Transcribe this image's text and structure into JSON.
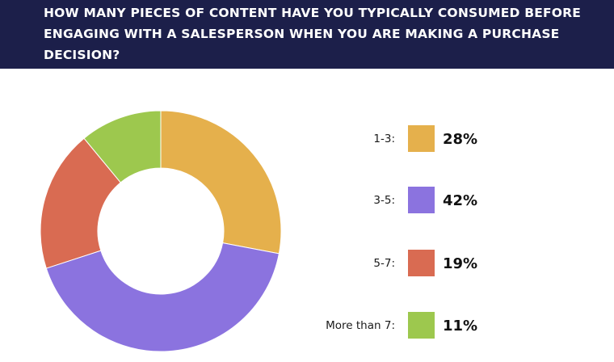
{
  "header": {
    "title": "HOW MANY PIECES OF CONTENT HAVE YOU TYPICALLY CONSUMED BEFORE ENGAGING WITH A SALESPERSON WHEN YOU ARE MAKING A PURCHASE DECISION?"
  },
  "chart_data": {
    "type": "pie",
    "style": "donut",
    "title": "HOW MANY PIECES OF CONTENT HAVE YOU TYPICALLY CONSUMED BEFORE ENGAGING WITH A SALESPERSON WHEN YOU ARE MAKING A PURCHASE DECISION?",
    "legend_position": "right",
    "slices": [
      {
        "label": "1-3:",
        "value": 28,
        "display": "28%",
        "color": "#e5b04c"
      },
      {
        "label": "3-5:",
        "value": 42,
        "display": "42%",
        "color": "#8b73df"
      },
      {
        "label": "5-7:",
        "value": 19,
        "display": "19%",
        "color": "#d96b52"
      },
      {
        "label": "More than 7:",
        "value": 11,
        "display": "11%",
        "color": "#9dc84e"
      }
    ]
  }
}
